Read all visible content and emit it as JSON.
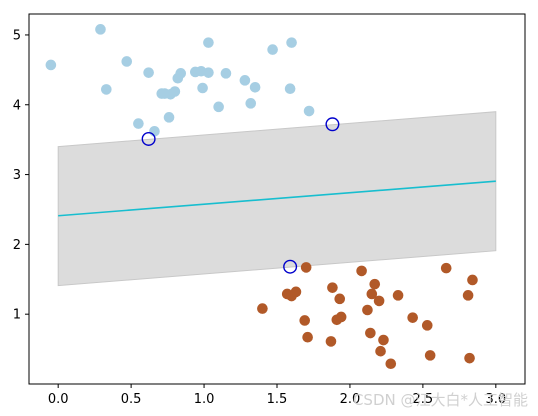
{
  "chart_data": {
    "type": "scatter",
    "title": "",
    "xlabel": "",
    "ylabel": "",
    "xlim": [
      -0.2,
      3.2
    ],
    "ylim": [
      0,
      5.3
    ],
    "xticks": [
      0.0,
      0.5,
      1.0,
      1.5,
      2.0,
      2.5,
      3.0
    ],
    "xtick_labels": [
      "0.0",
      "0.5",
      "1.0",
      "1.5",
      "2.0",
      "2.5",
      "3.0"
    ],
    "yticks": [
      1,
      2,
      3,
      4,
      5
    ],
    "ytick_labels": [
      "1",
      "2",
      "3",
      "4",
      "5"
    ],
    "grid": false,
    "colors": {
      "class_a": "#a6cee3",
      "class_b": "#b15928",
      "decision_line": "#17becf",
      "margin_fill": "#dcdcdc",
      "margin_edge": "#c8c8c8",
      "support_vector_edge": "#0000cc"
    },
    "decision_boundary": {
      "slope": 0.165,
      "intercept": 2.41,
      "x_range": [
        0.0,
        3.0
      ]
    },
    "margin": {
      "upper": [
        [
          0.0,
          3.4
        ],
        [
          3.0,
          3.9
        ]
      ],
      "lower": [
        [
          0.0,
          1.41
        ],
        [
          3.0,
          1.91
        ]
      ]
    },
    "series": [
      {
        "x": [
          -0.05,
          0.29,
          0.33,
          0.47,
          0.55,
          0.62,
          0.66,
          0.71,
          0.73,
          0.76,
          0.77,
          0.8,
          0.82,
          0.84,
          0.94,
          0.98,
          0.99,
          1.03,
          1.03,
          1.1,
          1.15,
          1.28,
          1.32,
          1.35,
          1.47,
          1.59,
          1.6,
          1.72
        ],
        "y": [
          4.57,
          5.08,
          4.22,
          4.62,
          3.73,
          4.46,
          3.62,
          4.16,
          4.16,
          3.82,
          4.15,
          4.19,
          4.38,
          4.45,
          4.47,
          4.48,
          4.24,
          4.46,
          4.89,
          3.97,
          4.45,
          4.35,
          4.02,
          4.25,
          4.79,
          4.23,
          4.89,
          3.91
        ]
      },
      {
        "x": [
          1.4,
          1.57,
          1.6,
          1.63,
          1.69,
          1.7,
          1.71,
          1.87,
          1.88,
          1.91,
          1.93,
          1.94,
          2.08,
          2.12,
          2.14,
          2.15,
          2.17,
          2.2,
          2.21,
          2.23,
          2.28,
          2.33,
          2.43,
          2.53,
          2.55,
          2.66,
          2.81,
          2.82,
          2.84
        ],
        "y": [
          1.08,
          1.29,
          1.26,
          1.32,
          0.91,
          1.67,
          0.67,
          0.61,
          1.38,
          0.92,
          1.22,
          0.96,
          1.62,
          1.06,
          0.73,
          1.29,
          1.43,
          1.19,
          0.47,
          0.63,
          0.29,
          1.27,
          0.95,
          0.84,
          0.41,
          1.66,
          1.27,
          0.37,
          1.49
        ]
      }
    ],
    "support_vectors": {
      "x": [
        0.62,
        1.88,
        1.59
      ],
      "y": [
        3.51,
        3.72,
        1.68
      ]
    }
  },
  "watermark": "CSDN @江大白*人工智能"
}
